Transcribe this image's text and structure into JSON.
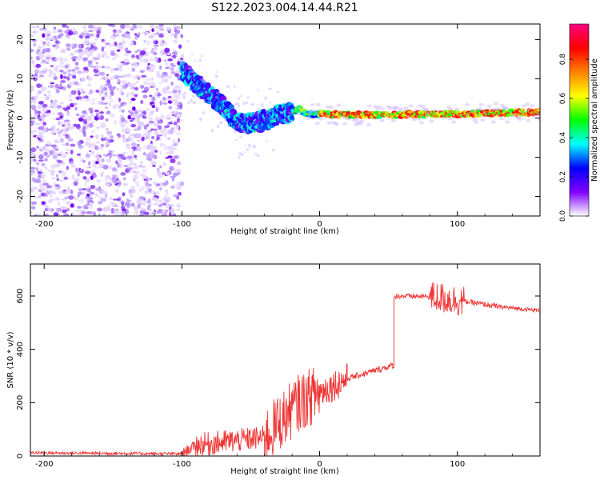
{
  "title": "S122.2023.004.14.44.R21",
  "chart_data": [
    {
      "type": "heatmap",
      "xlabel": "Height of straight line (km)",
      "ylabel": "Frequency (Hz)",
      "xlim": [
        -210,
        160
      ],
      "ylim": [
        -25,
        24
      ],
      "xticks": [
        -200,
        -100,
        0,
        100
      ],
      "yticks": [
        -20,
        -10,
        0,
        10,
        20
      ],
      "colorbar": {
        "label": "Normalized spectral amplitude",
        "range": [
          0.0,
          0.98
        ],
        "ticks": [
          "0.0",
          "0.2",
          "0.4",
          "0.6",
          "0.8"
        ],
        "colormap": [
          "#ffffff",
          "#8000ff",
          "#0000ff",
          "#00ffff",
          "#00ff00",
          "#ffff00",
          "#ff8000",
          "#ff0000",
          "#ff0080"
        ]
      },
      "ridge": {
        "x": [
          -100,
          -90,
          -80,
          -70,
          -60,
          -50,
          -40,
          -30,
          -20,
          -15,
          -10,
          0,
          20,
          50,
          80,
          100,
          120,
          160
        ],
        "y": [
          12,
          9,
          6,
          3,
          -1,
          -1.5,
          -0.5,
          1,
          1.5,
          2.5,
          1,
          1,
          0.8,
          0.8,
          1,
          1,
          1.2,
          1.5
        ]
      }
    },
    {
      "type": "line",
      "xlabel": "Height of straight line (km)",
      "ylabel": "SNR (10 * v/v)",
      "xlim": [
        -210,
        160
      ],
      "ylim": [
        0,
        720
      ],
      "xticks": [
        -200,
        -100,
        0,
        100
      ],
      "yticks": [
        0,
        200,
        400,
        600
      ],
      "color": "#ee3333",
      "segments": [
        {
          "x": [
            -210,
            -100
          ],
          "level": [
            12,
            8
          ],
          "noise": 6
        },
        {
          "x": [
            -100,
            -90
          ],
          "level": [
            8,
            40
          ],
          "noise": 20
        },
        {
          "x": [
            -90,
            -40
          ],
          "level": [
            40,
            70
          ],
          "noise": 45
        },
        {
          "x": [
            -40,
            -15
          ],
          "level": [
            70,
            200
          ],
          "noise": 110
        },
        {
          "x": [
            -15,
            0
          ],
          "level": [
            200,
            240
          ],
          "noise": 110
        },
        {
          "x": [
            0,
            20
          ],
          "level": [
            240,
            290
          ],
          "noise": 60
        },
        {
          "x": [
            20,
            53
          ],
          "level": [
            290,
            340
          ],
          "noise": 12
        },
        {
          "x": [
            53,
            54
          ],
          "level": [
            330,
            330
          ],
          "noise": 3
        },
        {
          "x": [
            54,
            80
          ],
          "level": [
            600,
            598
          ],
          "noise": 10
        },
        {
          "x": [
            80,
            105
          ],
          "level": [
            598,
            580
          ],
          "noise": 60
        },
        {
          "x": [
            105,
            130
          ],
          "level": [
            580,
            560
          ],
          "noise": 10
        },
        {
          "x": [
            130,
            160
          ],
          "level": [
            560,
            545
          ],
          "noise": 8
        }
      ]
    }
  ]
}
